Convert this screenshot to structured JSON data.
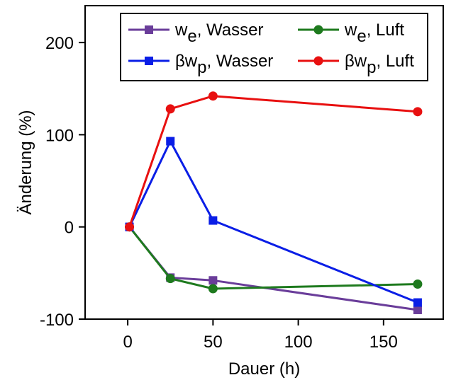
{
  "chart_data": {
    "type": "line",
    "xlabel": "Dauer (h)",
    "ylabel": "Änderung (%)",
    "xlim": [
      -25,
      185
    ],
    "ylim": [
      -100,
      240
    ],
    "xticks": [
      0,
      50,
      100,
      150
    ],
    "xtick_labels": [
      "0",
      "50",
      "100",
      "150"
    ],
    "yticks": [
      -100,
      0,
      100,
      200
    ],
    "ytick_labels": [
      "-100",
      "0",
      "100",
      "200"
    ],
    "grid": false,
    "legend_position": "top",
    "series": [
      {
        "name": "we, Wasser",
        "legend": {
          "base": "w",
          "sub": "e",
          "tail": ", Wasser"
        },
        "color": "#6a3d9a",
        "marker": "square",
        "x": [
          1,
          25,
          50,
          170
        ],
        "y": [
          0,
          -55,
          -58,
          -90
        ]
      },
      {
        "name": "βwp, Wasser",
        "legend": {
          "base": "βw",
          "sub": "p",
          "tail": ", Wasser"
        },
        "color": "#0a1ee6",
        "marker": "square",
        "x": [
          1,
          25,
          50,
          170
        ],
        "y": [
          0,
          93,
          7,
          -82
        ]
      },
      {
        "name": "we, Luft",
        "legend": {
          "base": "w",
          "sub": "e",
          "tail": ", Luft"
        },
        "color": "#1e7a1e",
        "marker": "circle",
        "x": [
          1,
          25,
          50,
          170
        ],
        "y": [
          0,
          -56,
          -67,
          -62
        ]
      },
      {
        "name": "βwp, Luft",
        "legend": {
          "base": "βw",
          "sub": "p",
          "tail": ", Luft"
        },
        "color": "#e81010",
        "marker": "circle",
        "x": [
          1,
          25,
          50,
          170
        ],
        "y": [
          0,
          128,
          142,
          125
        ]
      }
    ]
  }
}
